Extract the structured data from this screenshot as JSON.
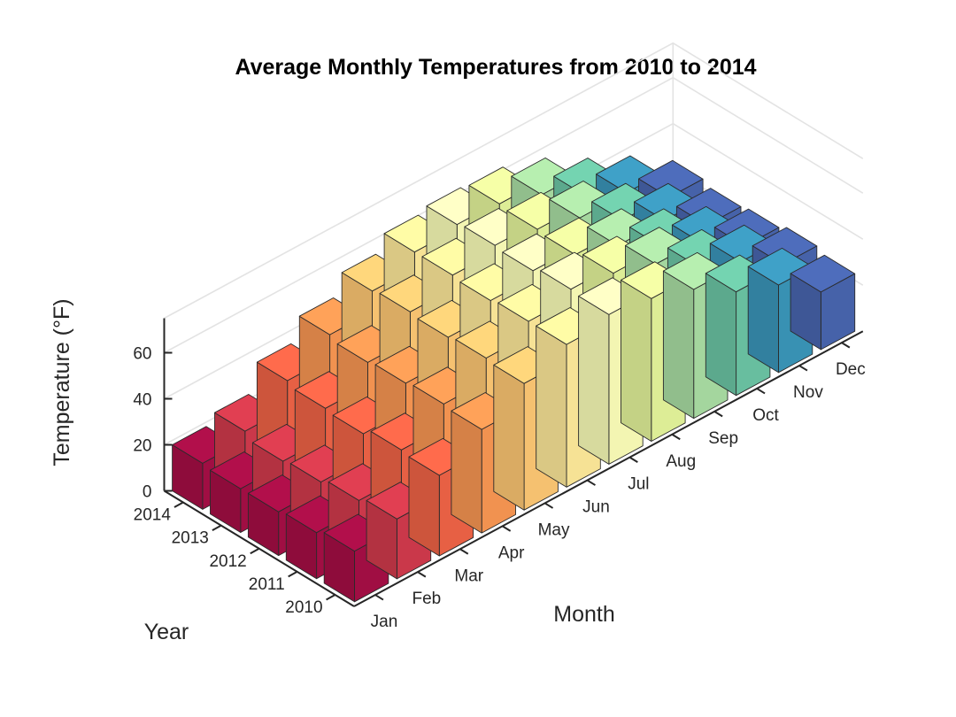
{
  "chart_data": {
    "type": "bar",
    "subtype": "3d-bar",
    "title": "Average Monthly Temperatures from 2010 to 2014",
    "xlabel": "Month",
    "ylabel": "Year",
    "zlabel": "Temperature (°F)",
    "categories": [
      "Jan",
      "Feb",
      "Mar",
      "Apr",
      "May",
      "Jun",
      "Jul",
      "Aug",
      "Sep",
      "Oct",
      "Nov",
      "Dec"
    ],
    "years": [
      "2010",
      "2011",
      "2012",
      "2013",
      "2014"
    ],
    "zticks": [
      0,
      20,
      40,
      60
    ],
    "zlim": [
      0,
      75
    ],
    "grid": true,
    "colormap": [
      "#a50e45",
      "#d03a4c",
      "#ee6346",
      "#f89652",
      "#fdc773",
      "#fee99a",
      "#fafdb8",
      "#e4f49b",
      "#a9dda3",
      "#6bc4a4",
      "#3a95b9",
      "#4865ae"
    ],
    "series": [
      {
        "name": "2010",
        "values": [
          22,
          26,
          35,
          45,
          55,
          62,
          65,
          62,
          56,
          45,
          38,
          25
        ]
      },
      {
        "name": "2011",
        "values": [
          20,
          24,
          36,
          46,
          56,
          62,
          66,
          63,
          57,
          46,
          38,
          27
        ]
      },
      {
        "name": "2012",
        "values": [
          19,
          22,
          33,
          45,
          55,
          61,
          64,
          61,
          55,
          45,
          36,
          25
        ]
      },
      {
        "name": "2013",
        "values": [
          19,
          21,
          34,
          44,
          56,
          62,
          65,
          62,
          57,
          46,
          36,
          24
        ]
      },
      {
        "name": "2014",
        "values": [
          20,
          24,
          36,
          46,
          55,
          62,
          64,
          63,
          57,
          47,
          38,
          26
        ]
      }
    ]
  }
}
